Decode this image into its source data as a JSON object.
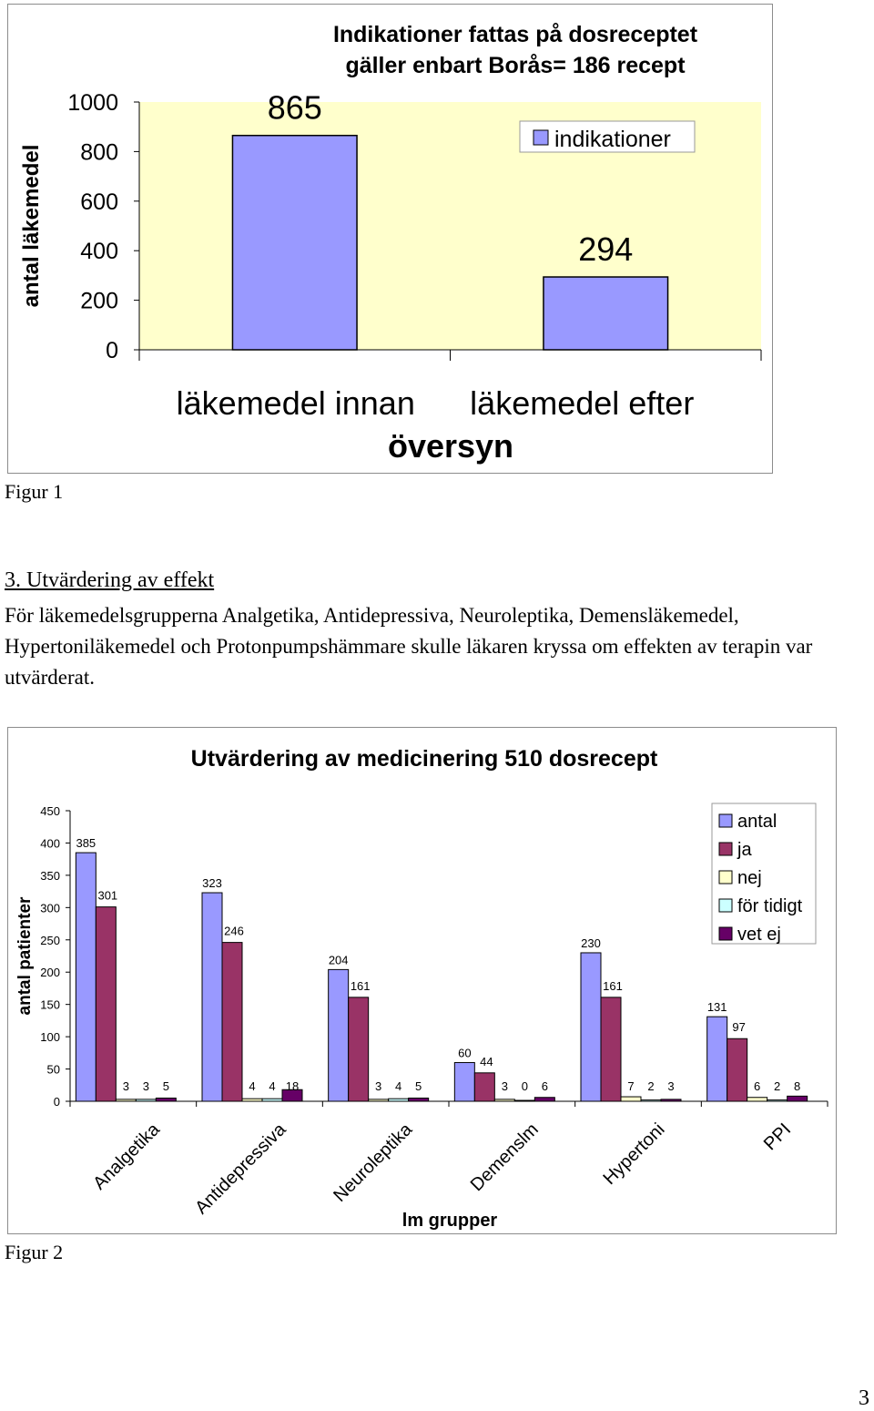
{
  "figures": [
    {
      "caption": "Figur 1"
    },
    {
      "caption": "Figur 2"
    }
  ],
  "section": {
    "heading": "3. Utvärdering av effekt",
    "body": "För läkemedelsgrupperna Analgetika, Antidepressiva, Neuroleptika, Demensläkemedel, Hypertoniläkemedel och Protonpumpshämmare skulle läkaren kryssa om effekten av terapin var utvärderat."
  },
  "page_number": "3",
  "chart_data": [
    {
      "type": "bar",
      "title": "Indikationer fattas på dosreceptet gäller enbart Borås= 186 recept",
      "title_lines": [
        "Indikationer fattas på dosreceptet",
        "gäller enbart Borås= 186 recept"
      ],
      "categories": [
        "läkemedel innan",
        "läkemedel efter"
      ],
      "xlabel": "översyn",
      "ylabel": "antal läkemedel",
      "ylim": [
        0,
        1000
      ],
      "yticks": [
        "0",
        "200",
        "400",
        "600",
        "800",
        "1000"
      ],
      "series": [
        {
          "name": "indikationer",
          "values": [
            865,
            294
          ],
          "color": "#9999ff"
        }
      ],
      "data_labels": [
        "865",
        "294"
      ],
      "plot_background": "#ffffcc",
      "legend_position": "top-right",
      "grid": false
    },
    {
      "type": "bar",
      "title": "Utvärdering av medicinering 510 dosrecept",
      "xlabel": "lm grupper",
      "ylabel": "antal patienter",
      "ylim": [
        0,
        450
      ],
      "yticks": [
        "0",
        "50",
        "100",
        "150",
        "200",
        "250",
        "300",
        "350",
        "400",
        "450"
      ],
      "categories": [
        "Analgetika",
        "Antidepressiva",
        "Neuroleptika",
        "Demenslm",
        "Hypertoni",
        "PPI"
      ],
      "series": [
        {
          "name": "antal",
          "values": [
            385,
            323,
            204,
            60,
            230,
            131
          ],
          "color": "#9999ff"
        },
        {
          "name": "ja",
          "values": [
            301,
            246,
            161,
            44,
            161,
            97
          ],
          "color": "#993366"
        },
        {
          "name": "nej",
          "values": [
            3,
            4,
            3,
            3,
            7,
            6
          ],
          "color": "#ffffcc"
        },
        {
          "name": "för tidigt",
          "values": [
            3,
            4,
            4,
            0,
            2,
            2
          ],
          "color": "#ccffff"
        },
        {
          "name": "vet ej",
          "values": [
            5,
            18,
            5,
            6,
            3,
            8
          ],
          "color": "#660066"
        }
      ],
      "legend_position": "top-right",
      "grid": false
    }
  ]
}
